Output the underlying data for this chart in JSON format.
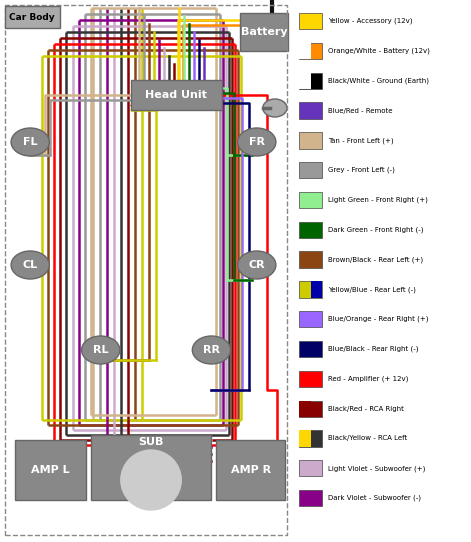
{
  "bg_color": "#ffffff",
  "legend_items": [
    {
      "color": "#FFD700",
      "label": "Yellow - Accessory (12v)"
    },
    {
      "color": "#FF8C00",
      "label": "Orange/White - Battery (12v)"
    },
    {
      "color": "#000000",
      "label": "Black/White - Ground (Earth)"
    },
    {
      "color": "#6633BB",
      "label": "Blue/Red - Remote"
    },
    {
      "color": "#D2B48C",
      "label": "Tan - Front Left (+)"
    },
    {
      "color": "#999999",
      "label": "Grey - Front Left (-)"
    },
    {
      "color": "#90EE90",
      "label": "Light Green - Front Right (+)"
    },
    {
      "color": "#006400",
      "label": "Dark Green - Front Right (-)"
    },
    {
      "color": "#8B4513",
      "label": "Brown/Black - Rear Left (+)"
    },
    {
      "color": "#CCCC00",
      "label": "Yellow/Blue - Rear Left (-)"
    },
    {
      "color": "#9966FF",
      "label": "Blue/Orange - Rear Right (+)"
    },
    {
      "color": "#000066",
      "label": "Blue/Black - Rear Right (-)"
    },
    {
      "color": "#FF0000",
      "label": "Red - Amplifier (+ 12v)"
    },
    {
      "color": "#880000",
      "label": "Black/Red - RCA Right"
    },
    {
      "color": "#333333",
      "label": "Black/Yellow - RCA Left"
    },
    {
      "color": "#CCAACC",
      "label": "Light Violet - Subwoofer (+)"
    },
    {
      "color": "#880088",
      "label": "Dark Violet - Subwoofer (-)"
    }
  ]
}
